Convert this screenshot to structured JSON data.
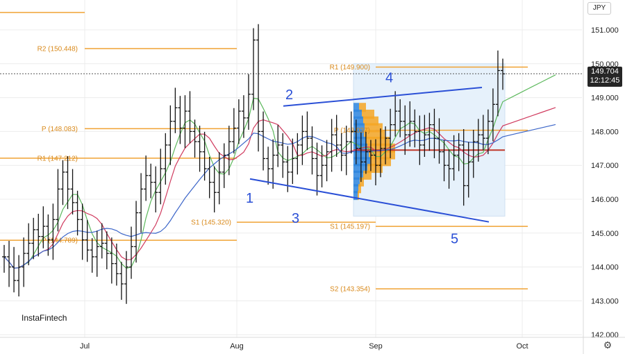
{
  "currency": "JPY",
  "brand": "InstaFintech",
  "last_price": {
    "value": "149.704",
    "time": "12:12:45",
    "price": 149.704
  },
  "settings_icon": "gear-icon",
  "colors": {
    "level": "#f0a233",
    "level_text": "#d98a1c",
    "wave": "#2a4fd6",
    "ma_green": "#5cb85c",
    "ma_red": "#d03a5e",
    "ma_blue": "#3a64c8",
    "box_fill": "#e6f1fb",
    "vp_blue": "#2e86de",
    "vp_orange": "#f5a623",
    "poc": "#c0392b"
  },
  "chart_data": {
    "type": "ohlc",
    "ylim": [
      141.9,
      151.5
    ],
    "y_ticks": [
      "151.000",
      "150.000",
      "149.000",
      "148.000",
      "147.000",
      "146.000",
      "145.000",
      "144.000",
      "143.000",
      "142.000"
    ],
    "x_ticks": [
      "Jul",
      "Aug",
      "Sep",
      "Oct"
    ],
    "pivot_levels": [
      {
        "label": "R2 (150.448)",
        "value": 150.448,
        "from": "Jul",
        "to": "Aug"
      },
      {
        "label": "R1 (147.212)",
        "value": 147.212,
        "from": "Jun",
        "to": "Aug"
      },
      {
        "label": "P (148.083)",
        "value": 148.083,
        "from": "Jul",
        "to": "Aug"
      },
      {
        "label": "S1 (145.320)",
        "value": 145.32,
        "from": "Aug",
        "to": "Sep"
      },
      {
        "label": "P (144.789)",
        "value": 144.789,
        "from": "Jun",
        "to": "Aug"
      },
      {
        "label": "R1 (149.900)",
        "value": 149.9,
        "from": "Sep",
        "to": "Oct"
      },
      {
        "label": "P (148.037)",
        "value": 148.037,
        "from": "Sep",
        "to": "Oct"
      },
      {
        "label": "S1 (145.197)",
        "value": 145.197,
        "from": "Sep",
        "to": "Oct"
      },
      {
        "label": "S2 (143.354)",
        "value": 143.354,
        "from": "Sep",
        "to": "Oct"
      }
    ],
    "wave_labels": [
      "1",
      "2",
      "3",
      "4",
      "5"
    ],
    "closes": [
      144.3,
      144.0,
      143.6,
      144.0,
      144.4,
      144.7,
      145.1,
      144.9,
      145.2,
      144.8,
      145.4,
      146.3,
      146.8,
      146.3,
      145.9,
      145.4,
      144.8,
      144.5,
      144.3,
      144.6,
      144.7,
      144.4,
      144.1,
      143.8,
      143.5,
      144.0,
      144.6,
      145.6,
      146.3,
      146.7,
      146.5,
      146.2,
      146.9,
      147.6,
      148.3,
      148.7,
      148.1,
      148.6,
      148.0,
      147.7,
      147.4,
      146.9,
      146.5,
      146.2,
      146.8,
      147.3,
      147.7,
      148.1,
      148.6,
      148.4,
      149.1,
      150.7,
      148.0,
      147.2,
      146.9,
      147.3,
      147.6,
      147.1,
      146.8,
      147.2,
      147.6,
      148.0,
      147.8,
      147.2,
      146.7,
      147.0,
      147.4,
      147.9,
      147.6,
      147.3,
      147.7,
      148.0,
      147.5,
      147.1,
      147.4,
      147.3,
      147.0,
      147.5,
      147.8,
      148.2,
      148.6,
      148.3,
      147.9,
      148.3,
      148.0,
      147.6,
      147.9,
      148.2,
      147.8,
      147.4,
      147.0,
      146.9,
      147.3,
      147.6,
      146.4,
      147.1,
      147.7,
      147.9,
      147.8,
      148.3,
      148.8,
      149.8,
      149.7
    ]
  }
}
